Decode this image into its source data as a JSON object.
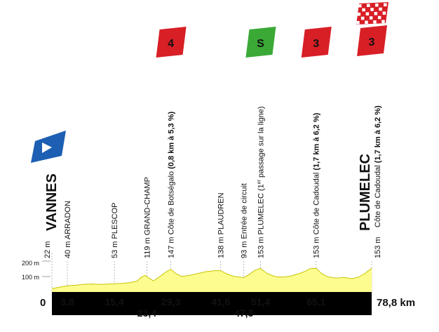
{
  "profile": {
    "start_label": "0",
    "total_label": "78,8 km",
    "total_km": 78.8,
    "axis": {
      "label_200": "200 m",
      "label_100": "100 m",
      "max": 200
    },
    "colors": {
      "fill": "#fdfd8f",
      "line": "#c7c400",
      "base": "#000000",
      "guide": "#aaaaaa",
      "climb": "#d81f26",
      "sprint": "#3aa935",
      "start": "#1c5fb3"
    },
    "elevation": [
      [
        0,
        22
      ],
      [
        2,
        32
      ],
      [
        3.8,
        40
      ],
      [
        6,
        44
      ],
      [
        8,
        50
      ],
      [
        10,
        52
      ],
      [
        12,
        49
      ],
      [
        15.4,
        53
      ],
      [
        17,
        55
      ],
      [
        19,
        60
      ],
      [
        21,
        70
      ],
      [
        22,
        95
      ],
      [
        23,
        108
      ],
      [
        24,
        88
      ],
      [
        25,
        72
      ],
      [
        26.5,
        98
      ],
      [
        28,
        128
      ],
      [
        29.3,
        147
      ],
      [
        30.5,
        120
      ],
      [
        32,
        100
      ],
      [
        34,
        108
      ],
      [
        36,
        120
      ],
      [
        38,
        132
      ],
      [
        40,
        138
      ],
      [
        41.6,
        138
      ],
      [
        43,
        118
      ],
      [
        45,
        100
      ],
      [
        47.3,
        93
      ],
      [
        48.5,
        112
      ],
      [
        50,
        140
      ],
      [
        51.4,
        153
      ],
      [
        53,
        120
      ],
      [
        55,
        100
      ],
      [
        57,
        96
      ],
      [
        59,
        104
      ],
      [
        61,
        120
      ],
      [
        62.5,
        135
      ],
      [
        63.5,
        150
      ],
      [
        65.1,
        153
      ],
      [
        66.5,
        118
      ],
      [
        68,
        98
      ],
      [
        70,
        90
      ],
      [
        72,
        94
      ],
      [
        74,
        86
      ],
      [
        75.5,
        96
      ],
      [
        77,
        118
      ],
      [
        78.8,
        153
      ]
    ],
    "markers": [
      {
        "km": 3.8,
        "km_label": "3,8",
        "text": "40 m ARRADON",
        "side": "top"
      },
      {
        "km": 15.4,
        "km_label": "15,4",
        "text": "53 m PLESCOP",
        "side": "top"
      },
      {
        "km": 23.4,
        "km_label": "23,4",
        "text": "119 m GRAND-CHAMP",
        "side": "bottom"
      },
      {
        "km": 29.3,
        "km_label": "29,3",
        "text": "147 m Côte de Botségalo",
        "bold": "(0,8 km à 5,3 %)",
        "side": "top"
      },
      {
        "km": 41.6,
        "km_label": "41,6",
        "text": "138 m PLAUDREN",
        "side": "top"
      },
      {
        "km": 47.3,
        "km_label": "47,3",
        "text": "93 m Entrée de circuit",
        "side": "bottom"
      },
      {
        "km": 51.4,
        "km_label": "51,4",
        "text": "153 m PLUMELEC (1",
        "sup": "er",
        "tail": " passage sur la ligne)",
        "side": "top"
      },
      {
        "km": 65.1,
        "km_label": "65,1",
        "text": "153 m Côte de Cadoudal",
        "bold": "(1,7 km à 6,2 %)",
        "side": "top"
      }
    ],
    "start": {
      "alt": "22 m",
      "name": "VANNES"
    },
    "finish": {
      "alt": "153 m",
      "name": "PLUMELEC",
      "climb": "Côte de Cadoudal",
      "climb_bold": "(1,7 km à 6,2 %)"
    },
    "badges": [
      {
        "km": 29.3,
        "label": "4",
        "type": "climb"
      },
      {
        "km": 51.4,
        "label": "S",
        "type": "sprint"
      },
      {
        "km": 65.1,
        "label": "3",
        "type": "climb"
      },
      {
        "km": 78.8,
        "label": "3",
        "type": "climb",
        "finish_flag": true
      }
    ]
  }
}
